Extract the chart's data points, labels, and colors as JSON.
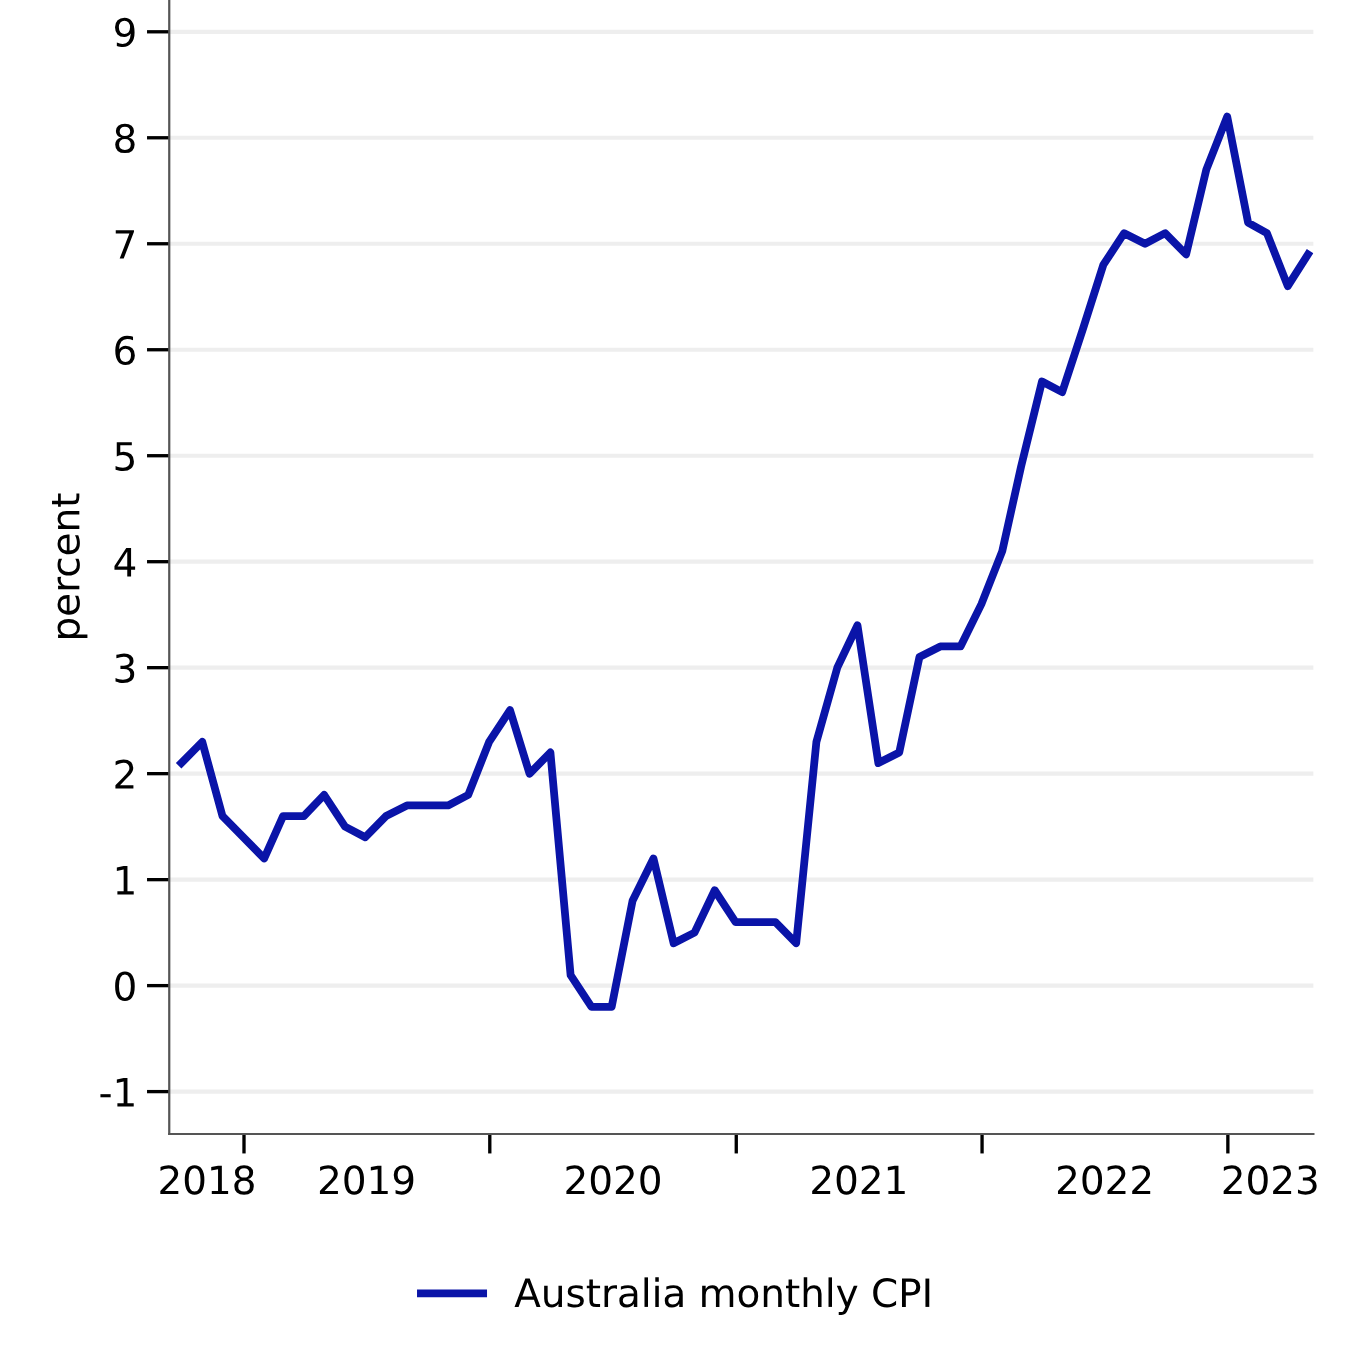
{
  "chart_data": {
    "type": "line",
    "ylabel": "percent",
    "x": [
      "2018-09-30",
      "2018-10-31",
      "2018-11-30",
      "2018-12-31",
      "2019-01-31",
      "2019-02-28",
      "2019-03-31",
      "2019-04-30",
      "2019-05-31",
      "2019-06-30",
      "2019-07-31",
      "2019-08-31",
      "2019-09-30",
      "2019-10-31",
      "2019-11-30",
      "2019-12-31",
      "2020-01-31",
      "2020-02-29",
      "2020-03-31",
      "2020-04-30",
      "2020-05-31",
      "2020-06-30",
      "2020-07-31",
      "2020-08-31",
      "2020-09-30",
      "2020-10-31",
      "2020-11-30",
      "2020-12-31",
      "2021-01-31",
      "2021-02-28",
      "2021-03-31",
      "2021-04-30",
      "2021-05-31",
      "2021-06-30",
      "2021-07-31",
      "2021-08-31",
      "2021-09-30",
      "2021-10-31",
      "2021-11-30",
      "2021-12-31",
      "2022-01-31",
      "2022-02-28",
      "2022-03-31",
      "2022-04-30",
      "2022-05-31",
      "2022-06-30",
      "2022-07-31",
      "2022-08-31",
      "2022-09-30",
      "2022-10-31",
      "2022-11-30",
      "2022-12-31",
      "2023-01-31",
      "2023-02-28",
      "2023-03-31",
      "2023-04-30"
    ],
    "series": [
      {
        "name": "Australia monthly CPI",
        "color": "#0a14a8",
        "values": [
          2.1,
          2.3,
          1.6,
          1.4,
          1.2,
          1.6,
          1.6,
          1.8,
          1.5,
          1.4,
          1.6,
          1.7,
          1.7,
          1.7,
          1.8,
          2.3,
          2.6,
          2.0,
          2.2,
          0.1,
          -0.2,
          -0.2,
          0.8,
          1.2,
          0.4,
          0.5,
          0.9,
          0.6,
          0.6,
          0.6,
          0.4,
          2.3,
          3.0,
          3.4,
          2.1,
          2.2,
          3.1,
          3.2,
          3.2,
          3.6,
          4.1,
          4.9,
          5.7,
          5.6,
          6.2,
          6.8,
          7.1,
          7.0,
          7.1,
          6.9,
          7.7,
          8.2,
          7.2,
          7.1,
          6.6,
          6.9
        ]
      }
    ],
    "xlim": [
      "2018-09-12",
      "2023-05-08"
    ],
    "xticks": [
      {
        "value": "2018-11-07",
        "label": "2018"
      },
      {
        "value": "2019-01-01",
        "label": null
      },
      {
        "value": "2019-07-02",
        "label": "2019"
      },
      {
        "value": "2020-01-01",
        "label": null
      },
      {
        "value": "2020-07-02",
        "label": "2020"
      },
      {
        "value": "2021-01-01",
        "label": null
      },
      {
        "value": "2021-07-02",
        "label": "2021"
      },
      {
        "value": "2022-01-01",
        "label": null
      },
      {
        "value": "2022-07-02",
        "label": "2022"
      },
      {
        "value": "2023-01-01",
        "label": null
      },
      {
        "value": "2023-03-05",
        "label": "2023"
      }
    ],
    "ylim": [
      -1.4,
      9.3
    ],
    "yticks": [
      -1,
      0,
      1,
      2,
      3,
      4,
      5,
      6,
      7,
      8,
      9
    ],
    "grid": "y",
    "legend": "bottom",
    "marker": "none",
    "line_style": "solid"
  }
}
